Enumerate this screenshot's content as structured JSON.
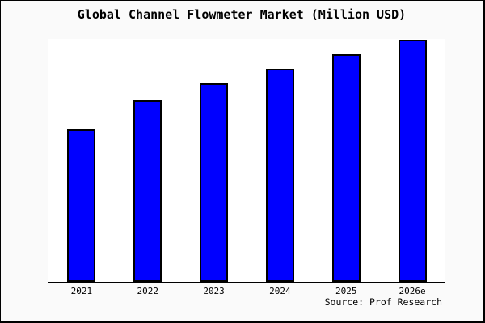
{
  "source": {
    "text": "Source: Prof Research"
  },
  "colors": {
    "background": "#fafafa",
    "plot_background": "#ffffff",
    "frame_border": "#000000",
    "bar_fill": "#0000ff",
    "bar_edge": "#000000",
    "axis_line": "#000000",
    "text": "#000000"
  },
  "chart_data": {
    "type": "bar",
    "title": "Global Channel Flowmeter Market (Million USD)",
    "categories": [
      "2021",
      "2022",
      "2023",
      "2024",
      "2025",
      "2026e"
    ],
    "values": [
      63,
      75,
      82,
      88,
      94,
      100
    ],
    "value_note": "relative scale estimated from bar heights; chart shows no y-axis tick labels",
    "xlabel": "",
    "ylabel": "",
    "ylim": [
      0,
      101
    ],
    "grid": false,
    "legend": "none",
    "bar_color": "#0000ff",
    "bar_edge_color": "#000000"
  }
}
